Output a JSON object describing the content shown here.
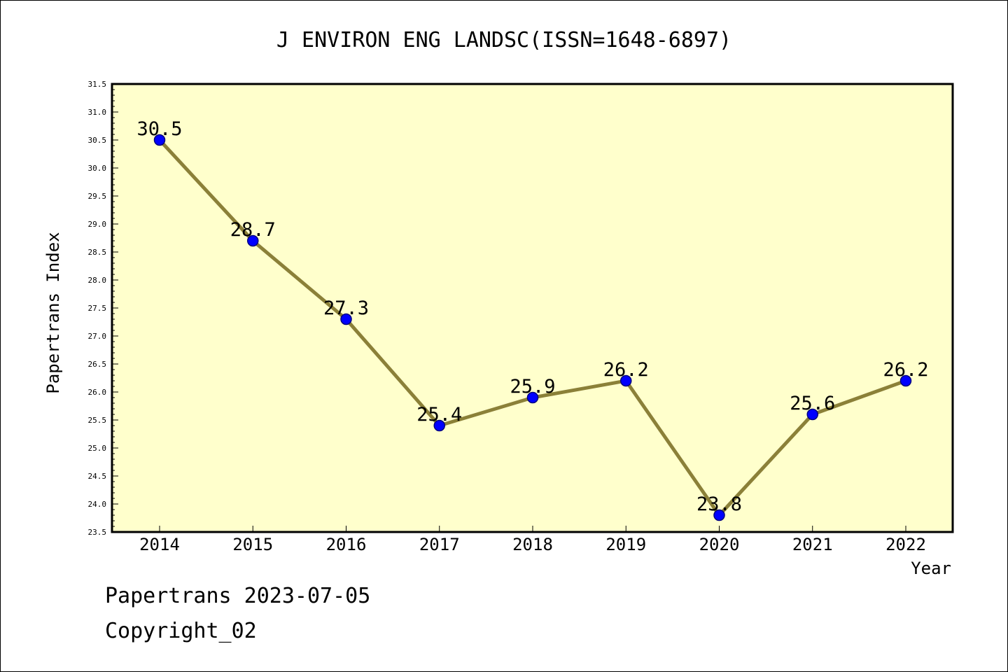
{
  "chart_data": {
    "type": "line",
    "title": "J ENVIRON ENG LANDSC(ISSN=1648-6897)",
    "xlabel": "Year",
    "ylabel": "Papertrans Index",
    "x": [
      "2014",
      "2015",
      "2016",
      "2017",
      "2018",
      "2019",
      "2020",
      "2021",
      "2022"
    ],
    "values": [
      30.5,
      28.7,
      27.3,
      25.4,
      25.9,
      26.2,
      23.8,
      25.6,
      26.2
    ],
    "data_labels": [
      "30.5",
      "28.7",
      "27.3",
      "25.4",
      "25.9",
      "26.2",
      "23.8",
      "25.6",
      "26.2"
    ],
    "ylim": [
      23.5,
      31.5
    ],
    "yticks": [
      "23.5",
      "24.0",
      "24.5",
      "25.0",
      "25.5",
      "26.0",
      "26.5",
      "27.0",
      "27.5",
      "28.0",
      "28.5",
      "29.0",
      "29.5",
      "30.0",
      "30.5",
      "31.0",
      "31.5"
    ],
    "grid": false,
    "legend": "none",
    "colors": {
      "plot_background": "#ffffcc",
      "line": "#8b8038",
      "marker": "#0000ff",
      "marker_edge": "#000080"
    }
  },
  "footer": {
    "date_line": "Papertrans 2023-07-05",
    "copyright": "Copyright_02"
  }
}
